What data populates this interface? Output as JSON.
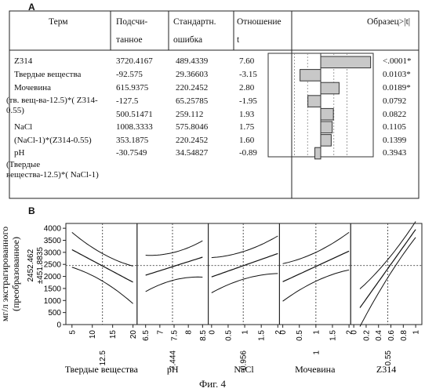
{
  "panel_a_label": "A",
  "panel_b_label": "B",
  "figure_caption": "Фиг. 4",
  "table": {
    "headers": {
      "term": "Терм",
      "estimate_1": "Подсчи-",
      "estimate_2": "танное",
      "stderr_1": "Стандартн.",
      "stderr_2": "ошибка",
      "tratio_1": "Отношение",
      "tratio_2": "t",
      "pvalue": "Образец>|t|"
    },
    "rows": [
      {
        "term": "Z314",
        "estimate": "3720.4167",
        "stderr": "489.4339",
        "tratio": "7.60",
        "pvalue": "<.0001*",
        "t": 7.6
      },
      {
        "term": "Твердые вещества",
        "estimate": "-92.575",
        "stderr": "29.36603",
        "tratio": "-3.15",
        "pvalue": "0.0103*",
        "t": -3.15
      },
      {
        "term": "Мочевина",
        "estimate": "615.9375",
        "stderr": "220.2452",
        "tratio": "2.80",
        "pvalue": "0.0189*",
        "t": 2.8
      },
      {
        "term": "(тв. вещ-ва-12.5)*( Z314-0.55)",
        "estimate": "-127.5",
        "stderr": "65.25785",
        "tratio": "-1.95",
        "pvalue": "0.0792",
        "t": -1.95
      },
      {
        "term": "",
        "estimate": "500.51471",
        "stderr": "259.112",
        "tratio": "1.93",
        "pvalue": "0.0822",
        "t": 1.93
      },
      {
        "term": "NaCl",
        "estimate": "1008.3333",
        "stderr": "575.8046",
        "tratio": "1.75",
        "pvalue": "0.1105",
        "t": 1.75
      },
      {
        "term": "(NaCl-1)*(Z314-0.55)",
        "estimate": "353.1875",
        "stderr": "220.2452",
        "tratio": "1.60",
        "pvalue": "0.1399",
        "t": 1.6
      },
      {
        "term": "pH",
        "estimate": "-30.7549",
        "stderr": "34.54827",
        "tratio": "-0.89",
        "pvalue": "0.3943",
        "t": -0.89
      },
      {
        "term": "(Твердые вещества-12.5)*( NaCl-1)",
        "estimate": "",
        "stderr": "",
        "tratio": "",
        "pvalue": ""
      }
    ]
  },
  "chart_data": {
    "type": "line",
    "ylabel_1": "мг/л экстрагированного",
    "ylabel_2": "(преобразованное)",
    "y_center_1": "2452.462",
    "y_center_2": "±451.8835",
    "ylim": [
      0,
      4200
    ],
    "yticks": [
      0,
      500,
      1000,
      1500,
      2000,
      2500,
      3000,
      3500,
      4000
    ],
    "reference_y": 2452.462,
    "panels": [
      {
        "name": "Твердые вещества",
        "xlim": [
          3.5,
          21
        ],
        "xticks": [
          "5",
          "10",
          "15",
          "20"
        ],
        "xtick_values": [
          5,
          10,
          15,
          20
        ],
        "current_label": "12.5",
        "current_x": 12.5,
        "x": [
          5,
          20
        ],
        "fit": [
          3110,
          1760
        ],
        "upper": [
          3650,
          2250
        ],
        "lower": [
          2560,
          1050
        ],
        "curvature": [
          0,
          0
        ]
      },
      {
        "name": "pH",
        "xlim": [
          6.2,
          8.7
        ],
        "xticks": [
          "6.5",
          "7",
          "7.5",
          "8",
          "8.5"
        ],
        "xtick_values": [
          6.5,
          7,
          7.5,
          8,
          8.5
        ],
        "current_label": "7.444",
        "current_x": 7.444,
        "x": [
          6.5,
          8.5
        ],
        "fit": [
          2050,
          2800
        ],
        "upper": [
          2700,
          3300
        ],
        "lower": [
          1550,
          2150
        ],
        "curvature": [
          0,
          0
        ]
      },
      {
        "name": "NaCl",
        "xlim": [
          -0.1,
          2.05
        ],
        "xticks": [
          "0",
          "0.5",
          "1",
          "1.5",
          "2"
        ],
        "xtick_values": [
          0,
          0.5,
          1,
          1.5,
          2
        ],
        "current_label": "0.956",
        "current_x": 0.956,
        "x": [
          0,
          2
        ],
        "fit": [
          1980,
          2950
        ],
        "upper": [
          2600,
          3500
        ],
        "lower": [
          1500,
          2300
        ],
        "curvature": [
          0,
          0
        ]
      },
      {
        "name": "Мочевина",
        "xlim": [
          -0.1,
          2.05
        ],
        "xticks": [
          "0",
          "0.5",
          "1",
          "1.5",
          "2"
        ],
        "xtick_values": [
          0,
          0.5,
          1,
          1.5,
          2
        ],
        "current_label": "1",
        "current_x": 1,
        "x": [
          0,
          2
        ],
        "fit": [
          1780,
          3050
        ],
        "upper": [
          2350,
          3650
        ],
        "lower": [
          1150,
          2450
        ],
        "curvature": [
          0,
          0
        ]
      },
      {
        "name": "Z314",
        "xlim": [
          -0.05,
          1.1
        ],
        "xticks": [
          "0",
          "0.2",
          "0.4",
          "0.6",
          "0.8",
          "1"
        ],
        "xtick_values": [
          0,
          0.2,
          0.4,
          0.6,
          0.8,
          1
        ],
        "current_label": "0.55",
        "current_x": 0.55,
        "x": [
          0.1,
          1.0
        ],
        "fit": [
          700,
          3950
        ],
        "upper": [
          1300,
          4100
        ],
        "lower": [
          100,
          3800
        ],
        "curvature": [
          0,
          0
        ]
      }
    ]
  }
}
